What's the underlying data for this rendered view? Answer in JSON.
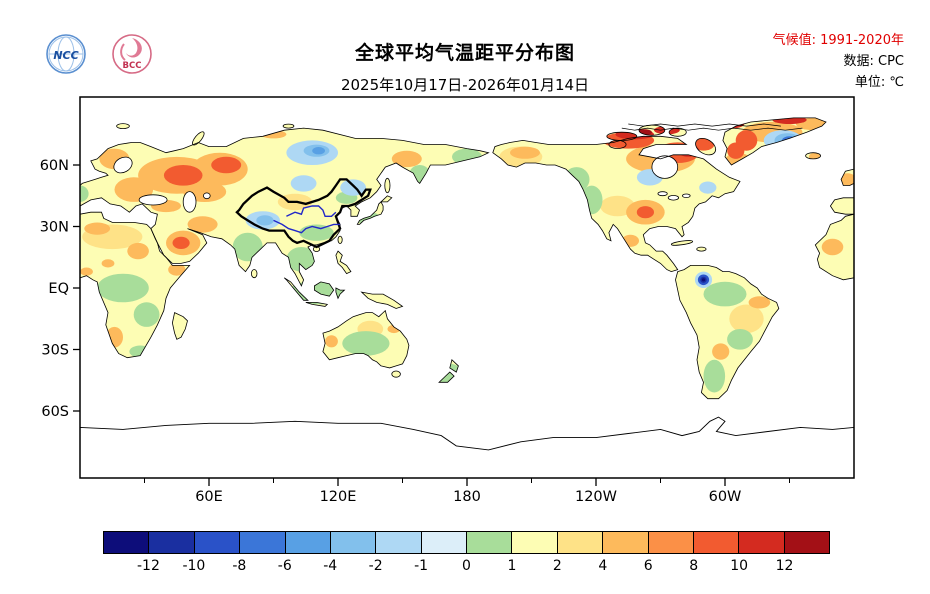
{
  "header": {
    "title": "全球平均气温距平分布图",
    "subtitle": "2025年10月17日-2026年01月14日",
    "climate_label": "气候值:  1991-2020年",
    "data_label": "数据:  CPC",
    "unit_label": "单位: ℃",
    "climate_color": "#e00000",
    "logos": [
      {
        "label": "NCC"
      },
      {
        "label": "BCC"
      }
    ]
  },
  "map": {
    "lat_ticks": [
      {
        "value": 60,
        "label": "60N"
      },
      {
        "value": 30,
        "label": "30N"
      },
      {
        "value": 0,
        "label": "EQ"
      },
      {
        "value": -30,
        "label": "30S"
      },
      {
        "value": -60,
        "label": "60S"
      }
    ],
    "lon_ticks": [
      {
        "value": 60,
        "label": "60E"
      },
      {
        "value": 120,
        "label": "120E"
      },
      {
        "value": 180,
        "label": "180"
      },
      {
        "value": 240,
        "label": "120W"
      },
      {
        "value": 300,
        "label": "60W"
      }
    ],
    "china_border_color": "#000000",
    "river_color": "#2228c8",
    "anomaly_blobs": [
      [
        15,
        25,
        14,
        6,
        10
      ],
      [
        100,
        42,
        8,
        4,
        10
      ],
      [
        250,
        40,
        8,
        5,
        10
      ],
      [
        205,
        64,
        10,
        5,
        10
      ],
      [
        310,
        -15,
        8,
        7,
        10
      ],
      [
        135,
        -20,
        6,
        4,
        10
      ],
      [
        45,
        55,
        18,
        9,
        11
      ],
      [
        25,
        48,
        9,
        6,
        11
      ],
      [
        16,
        63,
        7,
        5,
        11
      ],
      [
        65,
        58,
        13,
        8,
        11
      ],
      [
        58,
        47,
        10,
        5,
        11
      ],
      [
        40,
        40,
        7,
        3,
        11
      ],
      [
        57,
        31,
        7,
        4,
        11
      ],
      [
        48,
        22,
        8,
        6,
        11
      ],
      [
        8,
        29,
        6,
        3,
        11
      ],
      [
        27,
        18,
        5,
        4,
        11
      ],
      [
        45,
        9,
        4,
        3,
        11
      ],
      [
        3,
        8,
        3,
        2,
        11
      ],
      [
        13,
        12,
        3,
        2,
        11
      ],
      [
        16,
        -24,
        4,
        5,
        11
      ],
      [
        263,
        37,
        9,
        6,
        11
      ],
      [
        270,
        63,
        16,
        7,
        11
      ],
      [
        207,
        66,
        7,
        3,
        11
      ],
      [
        256,
        23,
        4,
        3,
        11
      ],
      [
        306,
        62,
        6,
        4,
        11
      ],
      [
        322,
        76,
        14,
        5,
        11
      ],
      [
        341,
        80,
        8,
        3,
        11
      ],
      [
        342,
        64,
        3,
        2,
        11
      ],
      [
        316,
        -7,
        5,
        3,
        11
      ],
      [
        298,
        -31,
        4,
        4,
        11
      ],
      [
        117,
        -26,
        3,
        3,
        11
      ],
      [
        146,
        -20,
        3,
        2,
        11
      ],
      [
        152,
        63,
        7,
        4,
        11
      ],
      [
        90,
        75,
        6,
        2,
        11
      ],
      [
        350,
        20,
        5,
        4,
        11
      ],
      [
        357,
        53,
        4,
        3,
        11
      ],
      [
        48,
        55,
        9,
        5,
        13
      ],
      [
        68,
        60,
        7,
        4,
        13
      ],
      [
        278,
        66,
        10,
        5,
        13
      ],
      [
        255,
        72,
        12,
        4,
        13
      ],
      [
        290,
        70,
        5,
        3,
        13
      ],
      [
        263,
        37,
        4,
        3,
        13
      ],
      [
        305,
        67,
        4,
        4,
        13
      ],
      [
        310,
        72,
        5,
        5,
        13
      ],
      [
        47,
        22,
        4,
        3,
        13
      ],
      [
        80,
        76,
        6,
        2,
        13
      ],
      [
        258,
        75,
        9,
        2.5,
        14
      ],
      [
        273,
        77,
        6,
        2,
        14
      ],
      [
        300,
        80,
        9,
        2.5,
        14
      ],
      [
        330,
        82,
        8,
        2,
        14
      ],
      [
        283,
        67,
        5,
        3,
        14
      ],
      [
        262,
        76,
        4,
        1.5,
        15
      ],
      [
        295,
        81,
        5,
        1.5,
        15
      ],
      [
        20,
        0,
        12,
        7,
        8
      ],
      [
        31,
        -13,
        6,
        6,
        8
      ],
      [
        28,
        -31,
        5,
        3,
        8
      ],
      [
        78,
        20,
        7,
        7,
        8
      ],
      [
        103,
        14,
        7,
        6,
        8
      ],
      [
        113,
        -2,
        16,
        6,
        8
      ],
      [
        110,
        27,
        8,
        4,
        8
      ],
      [
        133,
        -27,
        11,
        6,
        8
      ],
      [
        172,
        -42,
        6,
        5,
        8
      ],
      [
        134,
        34,
        6,
        3,
        8
      ],
      [
        238,
        43,
        5,
        7,
        8
      ],
      [
        231,
        53,
        6,
        6,
        8
      ],
      [
        300,
        -3,
        10,
        6,
        8
      ],
      [
        295,
        -43,
        5,
        8,
        8
      ],
      [
        307,
        -25,
        6,
        5,
        8
      ],
      [
        158,
        55,
        5,
        5,
        8
      ],
      [
        180,
        64,
        7,
        4,
        8
      ],
      [
        124,
        44,
        5,
        3,
        8
      ],
      [
        0,
        46,
        4,
        4,
        8
      ],
      [
        85,
        33,
        8,
        4.5,
        6
      ],
      [
        104,
        51,
        6,
        4,
        6
      ],
      [
        108,
        66,
        12,
        6,
        6
      ],
      [
        127,
        49,
        6,
        4,
        6
      ],
      [
        265,
        54,
        6,
        4,
        6
      ],
      [
        292,
        49,
        4,
        3,
        6
      ],
      [
        327,
        72,
        9,
        5,
        6
      ],
      [
        290,
        4,
        4,
        4,
        6
      ],
      [
        110,
        67,
        6,
        3,
        5
      ],
      [
        86,
        33,
        4,
        2.5,
        5
      ],
      [
        329,
        72,
        6,
        3.5,
        5
      ],
      [
        111,
        67,
        3,
        1.8,
        4
      ],
      [
        330,
        72,
        3.5,
        2,
        3
      ],
      [
        290,
        4,
        2.6,
        2.6,
        2
      ],
      [
        290,
        4,
        1.5,
        1.5,
        1
      ],
      [
        290,
        4,
        0.8,
        0.8,
        0
      ]
    ]
  },
  "colorbar": {
    "colors": [
      "#0d0d7a",
      "#1a2fa0",
      "#2a52c8",
      "#3b76d8",
      "#58a0e4",
      "#82c0ec",
      "#aed8f4",
      "#dceef9",
      "#a8dd9a",
      "#fdfdb4",
      "#fee287",
      "#fdba5c",
      "#fb9047",
      "#f25b30",
      "#d42b20",
      "#a31016"
    ],
    "tick_labels": [
      "-12",
      "-10",
      "-8",
      "-6",
      "-4",
      "-2",
      "-1",
      "0",
      "1",
      "2",
      "4",
      "6",
      "8",
      "10",
      "12"
    ]
  }
}
